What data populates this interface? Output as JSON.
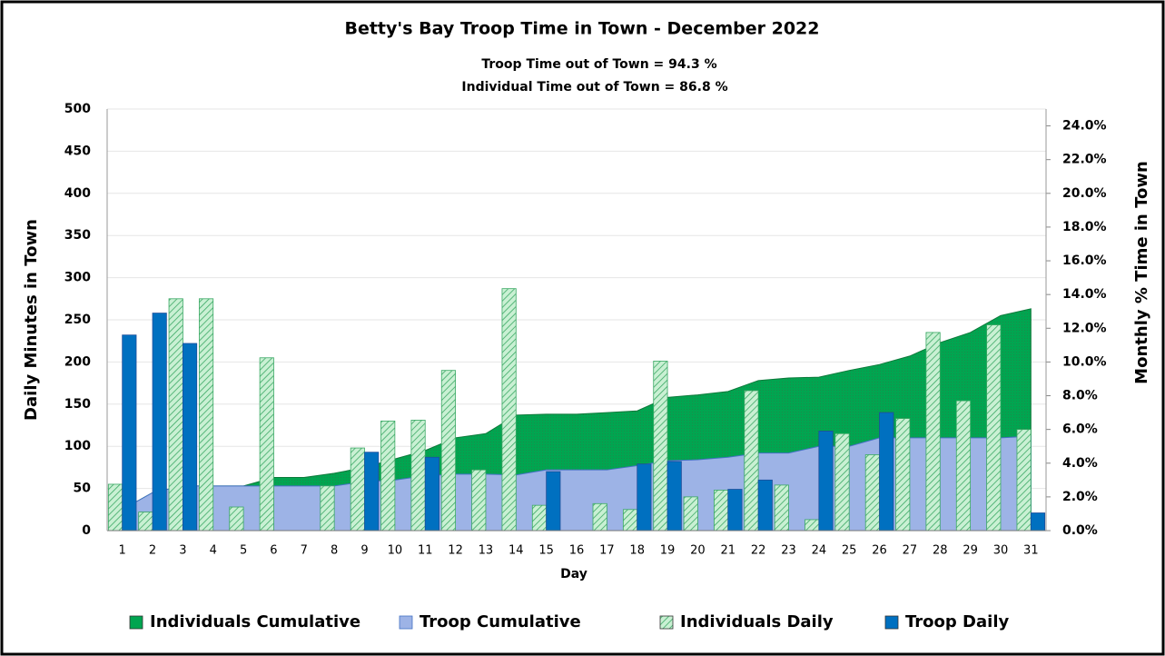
{
  "chart_data": {
    "type": "combo",
    "title": "Betty's Bay Troop Time in Town - December 2022",
    "subtitle": [
      "Troop Time out of Town =  94.3 %",
      "Individual Time out of Town =  86.8 %"
    ],
    "x_label": "Day",
    "y_label": "Daily Minutes in Town",
    "y2_label": "Monthly % Time in Town",
    "categories": [
      "1",
      "2",
      "3",
      "4",
      "5",
      "6",
      "7",
      "8",
      "9",
      "10",
      "11",
      "12",
      "13",
      "14",
      "15",
      "16",
      "17",
      "18",
      "19",
      "20",
      "21",
      "22",
      "23",
      "24",
      "25",
      "26",
      "27",
      "28",
      "29",
      "30",
      "31"
    ],
    "ylim": [
      0,
      500
    ],
    "yticks": [
      0,
      50,
      100,
      150,
      200,
      250,
      300,
      350,
      400,
      450,
      500
    ],
    "y2lim": [
      0,
      25
    ],
    "y2ticks": [
      {
        "value": 0,
        "label": "0.0%"
      },
      {
        "value": 2,
        "label": "2.0%"
      },
      {
        "value": 4,
        "label": "4.0%"
      },
      {
        "value": 6,
        "label": "6.0%"
      },
      {
        "value": 8,
        "label": "8.0%"
      },
      {
        "value": 10,
        "label": "10.0%"
      },
      {
        "value": 12,
        "label": "12.0%"
      },
      {
        "value": 14,
        "label": "14.0%"
      },
      {
        "value": 16,
        "label": "16.0%"
      },
      {
        "value": 18,
        "label": "18.0%"
      },
      {
        "value": 20,
        "label": "20.0%"
      },
      {
        "value": 22,
        "label": "22.0%"
      },
      {
        "value": 24,
        "label": "24.0%"
      }
    ],
    "grid": true,
    "legend": "bottom",
    "series": [
      {
        "name": "Individuals Cumulative",
        "type": "area",
        "axis": "y2",
        "color": "#00a550",
        "values": [
          1.25,
          2.25,
          2.65,
          2.65,
          2.65,
          3.15,
          3.15,
          3.4,
          3.75,
          4.25,
          4.75,
          5.5,
          5.75,
          6.85,
          6.9,
          6.9,
          7.0,
          7.1,
          7.9,
          8.05,
          8.25,
          8.9,
          9.05,
          9.1,
          9.5,
          9.85,
          10.35,
          11.15,
          11.75,
          12.75,
          13.15
        ]
      },
      {
        "name": "Troop Cumulative",
        "type": "area",
        "axis": "y2",
        "color": "#9db3e6",
        "values": [
          1.25,
          2.25,
          2.65,
          2.65,
          2.65,
          2.65,
          2.65,
          2.65,
          2.9,
          3.0,
          3.25,
          3.35,
          3.35,
          3.3,
          3.6,
          3.6,
          3.6,
          3.85,
          4.15,
          4.2,
          4.35,
          4.6,
          4.6,
          5.0,
          5.0,
          5.5,
          5.5,
          5.5,
          5.5,
          5.5,
          5.6
        ]
      },
      {
        "name": "Individuals Daily",
        "type": "bar",
        "color": "#b8e8c6",
        "values": [
          55,
          22,
          275,
          275,
          28,
          205,
          0,
          53,
          98,
          130,
          131,
          190,
          72,
          287,
          30,
          0,
          32,
          25,
          201,
          40,
          48,
          166,
          54,
          13,
          115,
          90,
          133,
          235,
          154,
          244,
          120
        ]
      },
      {
        "name": "Troop Daily",
        "type": "bar",
        "color": "#0070c0",
        "values": [
          232,
          258,
          222,
          0,
          0,
          0,
          0,
          0,
          93,
          0,
          87,
          0,
          0,
          0,
          70,
          0,
          0,
          79,
          82,
          0,
          49,
          60,
          0,
          118,
          0,
          140,
          0,
          0,
          0,
          0,
          21
        ]
      }
    ]
  }
}
